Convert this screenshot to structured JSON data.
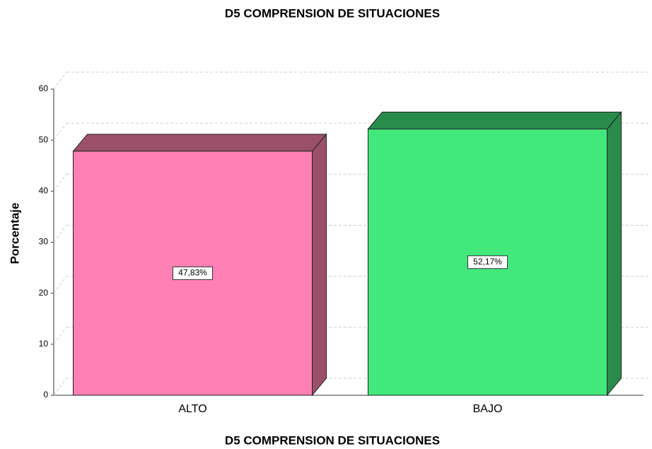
{
  "chart_data": {
    "type": "bar3d",
    "title": "D5 COMPRENSION DE SITUACIONES",
    "x_label": "D5 COMPRENSION DE SITUACIONES",
    "y_label": "Porcentaje",
    "categories": [
      "ALTO",
      "BAJO"
    ],
    "values": [
      47.83,
      52.17
    ],
    "value_labels": [
      "47,83%",
      "52,17%"
    ],
    "colors": [
      "#ff80b4",
      "#42e87c"
    ],
    "side_colors": [
      "#9b5069",
      "#2a8c4c"
    ],
    "ylim": [
      0,
      60
    ],
    "yticks": [
      0,
      10,
      20,
      30,
      40,
      50,
      60
    ],
    "grid": true
  }
}
